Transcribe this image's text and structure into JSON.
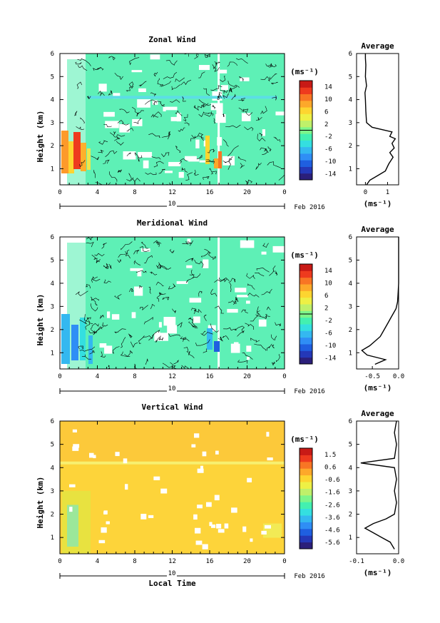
{
  "figure": {
    "date_label": "Feb 2016",
    "x_axis_title": "Local Time",
    "y_axis_title": "Height (km)",
    "unit_label": "(ms⁻¹)",
    "day_label": "10",
    "average_title": "Average"
  },
  "chart_data": [
    {
      "type": "heatmap",
      "title": "Zonal Wind",
      "ylabel": "Height (km)",
      "xlabel": "",
      "x_ticks": [
        "0",
        "4",
        "8",
        "12",
        "16",
        "20",
        "0"
      ],
      "y_ticks": [
        "1",
        "2",
        "3",
        "4",
        "5",
        "6"
      ],
      "xlim": [
        0,
        24
      ],
      "ylim": [
        0.3,
        6
      ],
      "colorbar": {
        "label": "(ms⁻¹)",
        "ticks": [
          "14",
          "10",
          "6",
          "2",
          "-2",
          "-6",
          "-10",
          "-14"
        ],
        "range": [
          -14,
          14
        ],
        "bands": [
          "#2b1f7a",
          "#2438b8",
          "#1f5fe0",
          "#2f8ef5",
          "#34b8f0",
          "#34dfe0",
          "#43f0b0",
          "#7cf58a",
          "#bff06a",
          "#eef045",
          "#fdd530",
          "#fda82a",
          "#f87524",
          "#ee3a1e",
          "#c81a16"
        ],
        "zero_line": true
      },
      "field_color": "#5ef0b6",
      "contoured": true,
      "average_profile": {
        "title": "Average",
        "x_ticks": [
          "0",
          "1"
        ],
        "xlim": [
          -0.4,
          1.5
        ],
        "xlabel": "(ms⁻¹)",
        "points": [
          [
            0.05,
            0.3
          ],
          [
            0.2,
            0.5
          ],
          [
            0.55,
            0.7
          ],
          [
            0.9,
            0.9
          ],
          [
            1.05,
            1.2
          ],
          [
            1.25,
            1.5
          ],
          [
            1.1,
            1.7
          ],
          [
            1.3,
            1.9
          ],
          [
            1.2,
            2.1
          ],
          [
            1.35,
            2.3
          ],
          [
            1.1,
            2.4
          ],
          [
            1.2,
            2.6
          ],
          [
            0.3,
            2.8
          ],
          [
            0.05,
            3.0
          ],
          [
            0.02,
            3.5
          ],
          [
            0.0,
            4.0
          ],
          [
            -0.02,
            4.3
          ],
          [
            0.05,
            4.6
          ],
          [
            0.0,
            5.0
          ],
          [
            0.02,
            5.5
          ],
          [
            0.0,
            5.8
          ],
          [
            0.0,
            6.0
          ]
        ]
      }
    },
    {
      "type": "heatmap",
      "title": "Meridional Wind",
      "ylabel": "Height (km)",
      "xlabel": "",
      "x_ticks": [
        "0",
        "4",
        "8",
        "12",
        "16",
        "20",
        "0"
      ],
      "y_ticks": [
        "1",
        "2",
        "3",
        "4",
        "5",
        "6"
      ],
      "xlim": [
        0,
        24
      ],
      "ylim": [
        0.3,
        6
      ],
      "colorbar": {
        "label": "(ms⁻¹)",
        "ticks": [
          "14",
          "10",
          "6",
          "2",
          "-2",
          "-6",
          "-10",
          "-14"
        ],
        "range": [
          -14,
          14
        ],
        "bands": [
          "#2b1f7a",
          "#2438b8",
          "#1f5fe0",
          "#2f8ef5",
          "#34b8f0",
          "#34dfe0",
          "#43f0b0",
          "#7cf58a",
          "#bff06a",
          "#eef045",
          "#fdd530",
          "#fda82a",
          "#f87524",
          "#ee3a1e",
          "#c81a16"
        ],
        "zero_line": true
      },
      "field_color": "#5ef0b6",
      "contoured": true,
      "average_profile": {
        "title": "Average",
        "x_ticks": [
          "-0.5",
          "0.0"
        ],
        "xlim": [
          -0.8,
          0.0
        ],
        "xlabel": "(ms⁻¹)",
        "points": [
          [
            -0.45,
            0.5
          ],
          [
            -0.25,
            0.7
          ],
          [
            -0.6,
            0.9
          ],
          [
            -0.7,
            1.1
          ],
          [
            -0.55,
            1.3
          ],
          [
            -0.45,
            1.5
          ],
          [
            -0.35,
            1.7
          ],
          [
            -0.3,
            1.9
          ],
          [
            -0.25,
            2.1
          ],
          [
            -0.2,
            2.3
          ],
          [
            -0.15,
            2.5
          ],
          [
            -0.1,
            2.7
          ],
          [
            -0.05,
            2.9
          ],
          [
            -0.02,
            3.2
          ],
          [
            -0.01,
            3.6
          ],
          [
            0.0,
            4.0
          ],
          [
            0.0,
            4.5
          ],
          [
            0.0,
            5.0
          ],
          [
            0.0,
            5.5
          ],
          [
            0.0,
            6.0
          ]
        ]
      }
    },
    {
      "type": "heatmap",
      "title": "Vertical Wind",
      "ylabel": "Height (km)",
      "xlabel": "Local Time",
      "x_ticks": [
        "0",
        "4",
        "8",
        "12",
        "16",
        "20",
        "0"
      ],
      "y_ticks": [
        "1",
        "2",
        "3",
        "4",
        "5",
        "6"
      ],
      "xlim": [
        0,
        24
      ],
      "ylim": [
        0.3,
        6
      ],
      "colorbar": {
        "label": "(ms⁻¹)",
        "ticks": [
          "1.5",
          "0.6",
          "-0.6",
          "-1.6",
          "-2.6",
          "-3.6",
          "-4.6",
          "-5.6"
        ],
        "range": [
          -6,
          2
        ],
        "bands": [
          "#2b1f7a",
          "#2438b8",
          "#1f5fe0",
          "#2f8ef5",
          "#34b8f0",
          "#34dfe0",
          "#43f0b0",
          "#7cf58a",
          "#bff06a",
          "#eef045",
          "#fdd530",
          "#fda82a",
          "#f87524",
          "#ee3a1e",
          "#c81a16"
        ],
        "zero_line": false
      },
      "field_color": "#fdd43a",
      "contoured": false,
      "average_profile": {
        "title": "Average",
        "x_ticks": [
          "-0.1",
          "0.0"
        ],
        "xlim": [
          -0.1,
          0.0
        ],
        "xlabel": "(ms⁻¹)",
        "points": [
          [
            -0.01,
            0.5
          ],
          [
            -0.02,
            0.8
          ],
          [
            -0.04,
            1.0
          ],
          [
            -0.06,
            1.2
          ],
          [
            -0.08,
            1.4
          ],
          [
            -0.06,
            1.6
          ],
          [
            -0.03,
            1.8
          ],
          [
            -0.01,
            2.0
          ],
          [
            -0.005,
            2.5
          ],
          [
            -0.01,
            3.0
          ],
          [
            -0.005,
            3.5
          ],
          [
            -0.01,
            4.0
          ],
          [
            -0.09,
            4.2
          ],
          [
            -0.01,
            4.4
          ],
          [
            -0.005,
            5.0
          ],
          [
            -0.01,
            5.5
          ],
          [
            -0.005,
            6.0
          ]
        ]
      }
    }
  ]
}
